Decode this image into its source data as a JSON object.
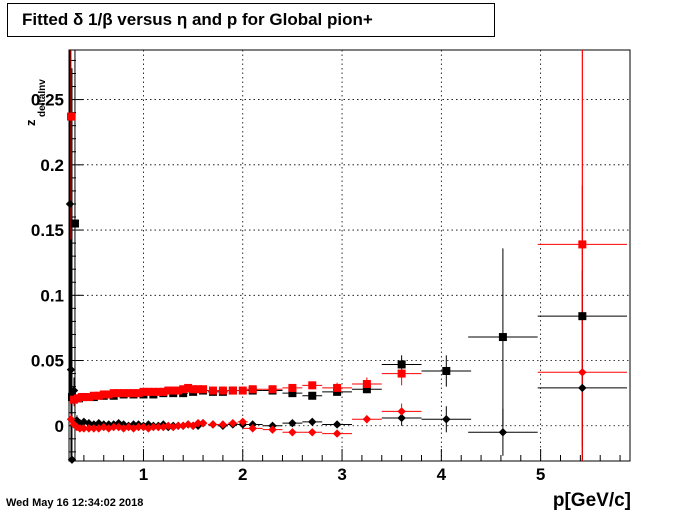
{
  "title": "Fitted δ 1/β versus η and p for Global pion+",
  "timestamp": "Wed May 16 12:34:02 2018",
  "chart_data": {
    "type": "scatter",
    "title": "Fitted δ 1/β versus η and p for Global pion+",
    "xlabel": "p[GeV/c]",
    "ylabel": "z",
    "ylabel_subscript": "deltaInv",
    "xlim": [
      0.25,
      5.9
    ],
    "ylim": [
      -0.027,
      0.288
    ],
    "xticks": [
      1,
      2,
      3,
      4,
      5
    ],
    "yticks": [
      0,
      0.05,
      0.1,
      0.15,
      0.2,
      0.25
    ],
    "xtick_labels": [
      "1",
      "2",
      "3",
      "4",
      "5"
    ],
    "ytick_labels": [
      "0",
      "0.05",
      "0.1",
      "0.15",
      "0.2",
      "0.25"
    ],
    "grid": true,
    "series": [
      {
        "marker": "square",
        "color": "#000000",
        "x": [
          0.28,
          0.31,
          0.35,
          0.4,
          0.5,
          0.6,
          0.7,
          0.8,
          0.9,
          1.0,
          1.1,
          1.2,
          1.3,
          1.4,
          1.5,
          1.6,
          1.7,
          1.8,
          1.9,
          2.1,
          2.3,
          2.5,
          2.7,
          2.95,
          3.25,
          3.6,
          4.05,
          4.62,
          5.42
        ],
        "y": [
          0.022,
          0.155,
          0.021,
          0.022,
          0.022,
          0.023,
          0.023,
          0.024,
          0.024,
          0.024,
          0.024,
          0.025,
          0.025,
          0.025,
          0.026,
          0.027,
          0.026,
          0.026,
          0.027,
          0.027,
          0.027,
          0.025,
          0.023,
          0.026,
          0.028,
          0.047,
          0.042,
          0.068,
          0.084
        ],
        "xerr": [
          0.02,
          0.02,
          0.02,
          0.02,
          0.05,
          0.05,
          0.05,
          0.05,
          0.05,
          0.05,
          0.05,
          0.05,
          0.05,
          0.05,
          0.05,
          0.05,
          0.05,
          0.05,
          0.05,
          0.1,
          0.1,
          0.1,
          0.1,
          0.15,
          0.15,
          0.2,
          0.25,
          0.35,
          0.45
        ],
        "yerr": [
          0.006,
          0.2,
          0.003,
          0.002,
          0.002,
          0.002,
          0.002,
          0.002,
          0.002,
          0.002,
          0.002,
          0.002,
          0.002,
          0.002,
          0.002,
          0.002,
          0.002,
          0.002,
          0.002,
          0.002,
          0.002,
          0.002,
          0.002,
          0.002,
          0.003,
          0.007,
          0.012,
          0.068,
          0.1
        ]
      },
      {
        "marker": "square",
        "color": "#ff0000",
        "x": [
          0.27,
          0.3,
          0.34,
          0.38,
          0.45,
          0.5,
          0.55,
          0.6,
          0.65,
          0.7,
          0.75,
          0.8,
          0.85,
          0.9,
          0.95,
          1.0,
          1.05,
          1.1,
          1.15,
          1.2,
          1.25,
          1.3,
          1.35,
          1.4,
          1.45,
          1.5,
          1.55,
          1.6,
          1.7,
          1.8,
          1.9,
          2.0,
          2.1,
          2.3,
          2.5,
          2.7,
          2.95,
          3.25,
          3.6,
          5.42
        ],
        "y": [
          0.237,
          0.02,
          0.021,
          0.022,
          0.022,
          0.023,
          0.023,
          0.024,
          0.024,
          0.025,
          0.025,
          0.025,
          0.025,
          0.025,
          0.025,
          0.026,
          0.026,
          0.026,
          0.026,
          0.026,
          0.027,
          0.027,
          0.027,
          0.028,
          0.029,
          0.028,
          0.028,
          0.028,
          0.027,
          0.027,
          0.027,
          0.027,
          0.028,
          0.028,
          0.029,
          0.031,
          0.029,
          0.032,
          0.04,
          0.139
        ],
        "xerr": [
          0.01,
          0.02,
          0.02,
          0.02,
          0.025,
          0.025,
          0.025,
          0.025,
          0.025,
          0.025,
          0.025,
          0.025,
          0.025,
          0.025,
          0.025,
          0.025,
          0.025,
          0.025,
          0.025,
          0.025,
          0.025,
          0.025,
          0.025,
          0.025,
          0.025,
          0.025,
          0.025,
          0.025,
          0.05,
          0.05,
          0.05,
          0.05,
          0.1,
          0.1,
          0.1,
          0.1,
          0.15,
          0.15,
          0.2,
          0.45
        ],
        "yerr": [
          0.2,
          0.005,
          0.003,
          0.002,
          0.002,
          0.002,
          0.002,
          0.002,
          0.002,
          0.002,
          0.002,
          0.002,
          0.002,
          0.002,
          0.002,
          0.002,
          0.002,
          0.002,
          0.002,
          0.002,
          0.002,
          0.002,
          0.002,
          0.002,
          0.002,
          0.002,
          0.002,
          0.002,
          0.002,
          0.002,
          0.002,
          0.002,
          0.002,
          0.002,
          0.003,
          0.003,
          0.004,
          0.005,
          0.009,
          0.3
        ]
      },
      {
        "marker": "diamond",
        "color": "#000000",
        "x": [
          0.26,
          0.27,
          0.28,
          0.3,
          0.33,
          0.36,
          0.4,
          0.45,
          0.5,
          0.55,
          0.6,
          0.65,
          0.7,
          0.75,
          0.8,
          0.85,
          0.9,
          0.95,
          1.0,
          1.05,
          1.1,
          1.15,
          1.2,
          1.25,
          1.3,
          1.35,
          1.4,
          1.45,
          1.5,
          1.55,
          1.6,
          1.7,
          1.8,
          1.9,
          2.0,
          2.1,
          2.3,
          2.5,
          2.7,
          2.95,
          3.6,
          4.05,
          4.62,
          5.42
        ],
        "y": [
          0.17,
          0.043,
          -0.026,
          0.027,
          0.004,
          0.002,
          0.003,
          0.002,
          0.001,
          0.002,
          0.001,
          0.001,
          0.001,
          0.002,
          0.001,
          0.0,
          0.001,
          0.001,
          0.0,
          0.001,
          0.0,
          0.0,
          0.001,
          -0.001,
          0.0,
          0.0,
          0.0,
          0.001,
          0.0,
          0.0,
          0.002,
          0.001,
          0.0,
          0.001,
          0.001,
          0.001,
          0.0,
          0.002,
          0.003,
          0.001,
          0.006,
          0.005,
          -0.005,
          0.029
        ],
        "xerr": [
          0.005,
          0.01,
          0.01,
          0.02,
          0.02,
          0.02,
          0.025,
          0.025,
          0.025,
          0.025,
          0.025,
          0.025,
          0.025,
          0.025,
          0.025,
          0.025,
          0.025,
          0.025,
          0.025,
          0.025,
          0.025,
          0.025,
          0.025,
          0.025,
          0.025,
          0.025,
          0.025,
          0.025,
          0.025,
          0.025,
          0.025,
          0.05,
          0.05,
          0.05,
          0.05,
          0.1,
          0.1,
          0.1,
          0.1,
          0.15,
          0.2,
          0.25,
          0.35,
          0.45
        ],
        "yerr": [
          0.15,
          0.1,
          0.3,
          0.01,
          0.004,
          0.002,
          0.002,
          0.002,
          0.002,
          0.002,
          0.002,
          0.002,
          0.002,
          0.002,
          0.002,
          0.002,
          0.002,
          0.002,
          0.002,
          0.002,
          0.002,
          0.002,
          0.002,
          0.002,
          0.002,
          0.002,
          0.002,
          0.002,
          0.002,
          0.002,
          0.002,
          0.002,
          0.002,
          0.002,
          0.002,
          0.002,
          0.002,
          0.002,
          0.002,
          0.002,
          0.006,
          0.01,
          0.018,
          0.09
        ]
      },
      {
        "marker": "diamond",
        "color": "#ff0000",
        "x": [
          0.27,
          0.3,
          0.33,
          0.36,
          0.4,
          0.45,
          0.5,
          0.55,
          0.6,
          0.65,
          0.7,
          0.75,
          0.8,
          0.85,
          0.9,
          0.95,
          1.0,
          1.05,
          1.1,
          1.15,
          1.2,
          1.25,
          1.3,
          1.35,
          1.4,
          1.45,
          1.5,
          1.55,
          1.6,
          1.7,
          1.8,
          1.9,
          2.0,
          2.1,
          2.3,
          2.5,
          2.7,
          2.95,
          3.25,
          3.6,
          5.42
        ],
        "y": [
          0.005,
          0.001,
          -0.001,
          -0.002,
          -0.002,
          -0.002,
          -0.002,
          -0.002,
          -0.001,
          -0.002,
          -0.001,
          -0.001,
          -0.002,
          -0.001,
          -0.002,
          -0.001,
          -0.001,
          -0.002,
          -0.001,
          -0.001,
          -0.001,
          0.0,
          -0.001,
          0.0,
          0.0,
          0.001,
          0.0,
          0.002,
          0.002,
          0.001,
          0.001,
          0.002,
          0.003,
          -0.002,
          -0.003,
          -0.005,
          -0.005,
          -0.006,
          0.005,
          0.011,
          0.041
        ],
        "xerr": [
          0.01,
          0.02,
          0.02,
          0.02,
          0.025,
          0.025,
          0.025,
          0.025,
          0.025,
          0.025,
          0.025,
          0.025,
          0.025,
          0.025,
          0.025,
          0.025,
          0.025,
          0.025,
          0.025,
          0.025,
          0.025,
          0.025,
          0.025,
          0.025,
          0.025,
          0.025,
          0.025,
          0.025,
          0.025,
          0.05,
          0.05,
          0.05,
          0.05,
          0.1,
          0.1,
          0.1,
          0.1,
          0.15,
          0.15,
          0.2,
          0.45
        ],
        "yerr": [
          0.004,
          0.003,
          0.002,
          0.002,
          0.002,
          0.002,
          0.002,
          0.002,
          0.002,
          0.002,
          0.002,
          0.002,
          0.002,
          0.002,
          0.002,
          0.002,
          0.002,
          0.002,
          0.002,
          0.002,
          0.002,
          0.002,
          0.002,
          0.002,
          0.002,
          0.002,
          0.002,
          0.002,
          0.002,
          0.002,
          0.002,
          0.002,
          0.002,
          0.002,
          0.002,
          0.002,
          0.002,
          0.002,
          0.003,
          0.006,
          0.3
        ]
      }
    ]
  }
}
